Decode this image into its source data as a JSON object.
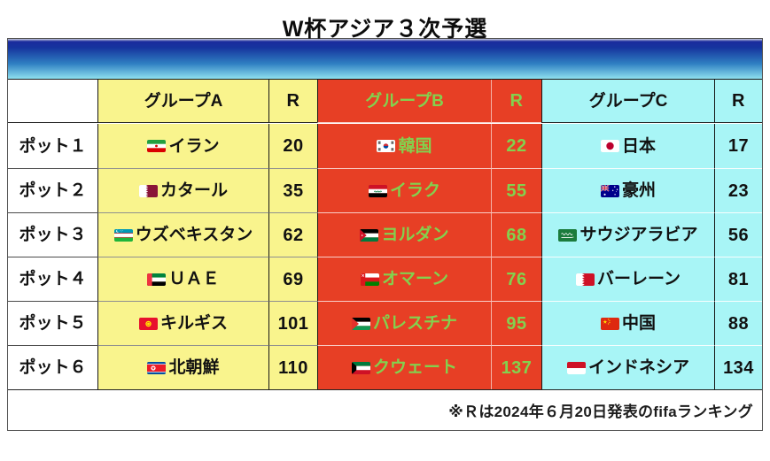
{
  "chart_data": {
    "type": "table",
    "title": "W杯アジア３次予選",
    "footnote": "※Ｒは2024年６月20日発表のfifaランキング",
    "rank_note_symbol": "R",
    "groups": [
      {
        "key": "a",
        "label": "グループA",
        "rank_label": "R"
      },
      {
        "key": "b",
        "label": "グループB",
        "rank_label": "R"
      },
      {
        "key": "c",
        "label": "グループC",
        "rank_label": "R"
      }
    ],
    "rows": [
      {
        "pot": "ポット１",
        "cells": [
          {
            "team": "イラン",
            "flag": "iran",
            "rank": "20"
          },
          {
            "team": "韓国",
            "flag": "south-korea",
            "rank": "22"
          },
          {
            "team": "日本",
            "flag": "japan",
            "rank": "17"
          }
        ]
      },
      {
        "pot": "ポット２",
        "cells": [
          {
            "team": "カタール",
            "flag": "qatar",
            "rank": "35"
          },
          {
            "team": "イラク",
            "flag": "iraq",
            "rank": "55"
          },
          {
            "team": "豪州",
            "flag": "australia",
            "rank": "23"
          }
        ]
      },
      {
        "pot": "ポット３",
        "cells": [
          {
            "team": "ウズベキスタン",
            "flag": "uzbekistan",
            "rank": "62"
          },
          {
            "team": "ヨルダン",
            "flag": "jordan",
            "rank": "68"
          },
          {
            "team": "サウジアラビア",
            "flag": "saudi-arabia",
            "rank": "56"
          }
        ]
      },
      {
        "pot": "ポット４",
        "cells": [
          {
            "team": "ＵＡＥ",
            "flag": "uae",
            "rank": "69"
          },
          {
            "team": "オマーン",
            "flag": "oman",
            "rank": "76"
          },
          {
            "team": "バーレーン",
            "flag": "bahrain",
            "rank": "81"
          }
        ]
      },
      {
        "pot": "ポット５",
        "cells": [
          {
            "team": "キルギス",
            "flag": "kyrgyzstan",
            "rank": "101"
          },
          {
            "team": "パレスチナ",
            "flag": "palestine",
            "rank": "95"
          },
          {
            "team": "中国",
            "flag": "china",
            "rank": "88"
          }
        ]
      },
      {
        "pot": "ポット６",
        "cells": [
          {
            "team": "北朝鮮",
            "flag": "north-korea",
            "rank": "110"
          },
          {
            "team": "クウェート",
            "flag": "kuwait",
            "rank": "137"
          },
          {
            "team": "インドネシア",
            "flag": "indonesia",
            "rank": "134"
          }
        ]
      }
    ]
  },
  "colors": {
    "group_a_bg": "#F9F48D",
    "group_b_bg": "#E73F25",
    "group_b_text": "#83D14E",
    "group_c_bg": "#A8F5F6",
    "banner_top": "#1B2B9D",
    "banner_bottom": "#8EE0EF"
  }
}
